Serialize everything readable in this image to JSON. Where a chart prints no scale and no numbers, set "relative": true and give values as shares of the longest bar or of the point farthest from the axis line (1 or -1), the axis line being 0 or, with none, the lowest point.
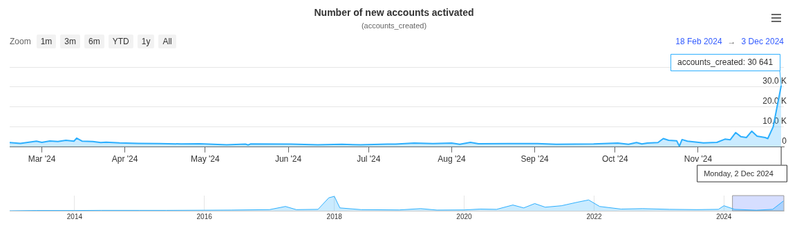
{
  "chart_data": [
    {
      "type": "area",
      "title": "Number of new accounts activated",
      "subtitle": "(accounts_created)",
      "x": [
        "2024-02-18",
        "2024-02-22",
        "2024-02-28",
        "2024-03-01",
        "2024-03-04",
        "2024-03-07",
        "2024-03-10",
        "2024-03-13",
        "2024-03-14",
        "2024-03-16",
        "2024-03-20",
        "2024-03-23",
        "2024-03-25",
        "2024-03-30",
        "2024-04-06",
        "2024-04-14",
        "2024-04-22",
        "2024-04-29",
        "2024-05-09",
        "2024-05-16",
        "2024-05-17",
        "2024-05-18",
        "2024-06-02",
        "2024-06-12",
        "2024-06-21",
        "2024-06-28",
        "2024-07-08",
        "2024-07-11",
        "2024-07-18",
        "2024-07-25",
        "2024-08-01",
        "2024-08-04",
        "2024-08-08",
        "2024-08-11",
        "2024-08-22",
        "2024-09-02",
        "2024-09-09",
        "2024-09-23",
        "2024-10-02",
        "2024-10-06",
        "2024-10-09",
        "2024-10-11",
        "2024-10-13",
        "2024-10-17",
        "2024-10-19",
        "2024-10-21",
        "2024-10-24",
        "2024-10-25",
        "2024-10-26",
        "2024-10-28",
        "2024-11-03",
        "2024-11-08",
        "2024-11-11",
        "2024-11-13",
        "2024-11-15",
        "2024-11-17",
        "2024-11-19",
        "2024-11-21",
        "2024-11-23",
        "2024-11-26",
        "2024-11-27",
        "2024-11-29",
        "2024-12-02"
      ],
      "series": [
        {
          "color": "#2caffe",
          "values": [
            2200,
            1800,
            2900,
            2300,
            3000,
            2700,
            3300,
            2900,
            4400,
            2900,
            2700,
            2200,
            2400,
            2000,
            1800,
            1700,
            1500,
            1600,
            1100,
            1400,
            1000,
            1500,
            1400,
            1100,
            1300,
            1100,
            1400,
            1400,
            1900,
            1700,
            1900,
            1300,
            2300,
            1600,
            1700,
            1700,
            1300,
            1500,
            1900,
            1300,
            2200,
            1500,
            1900,
            2200,
            4200,
            3300,
            3100,
            400,
            3700,
            2900,
            2000,
            2300,
            3900,
            3600,
            7200,
            5100,
            4700,
            7900,
            5400,
            4700,
            4200,
            10000,
            30641
          ]
        }
      ],
      "xlim": [
        "2024-02-18",
        "2024-12-03"
      ],
      "xticks": [
        {
          "value": "2024-03",
          "label": "Mar '24"
        },
        {
          "value": "2024-04",
          "label": "Apr '24"
        },
        {
          "value": "2024-05",
          "label": "May '24"
        },
        {
          "value": "2024-06",
          "label": "Jun '24"
        },
        {
          "value": "2024-07",
          "label": "Jul '24"
        },
        {
          "value": "2024-08",
          "label": "Aug '24"
        },
        {
          "value": "2024-09",
          "label": "Sep '24"
        },
        {
          "value": "2024-10",
          "label": "Oct '24"
        },
        {
          "value": "2024-11",
          "label": "Nov '24"
        }
      ],
      "ylim": [
        0,
        40000
      ],
      "yticks": [
        0,
        {
          "value": 10000,
          "label": "10.0 K"
        },
        {
          "value": 20000,
          "label": "20.0 K"
        },
        {
          "value": 30000,
          "label": "30.0 K"
        },
        {
          "value": 40000,
          "label": null
        }
      ],
      "grid": "y",
      "legend": false,
      "marker": "none",
      "annotations": [
        "Zoom",
        "1m",
        "3m",
        "6m",
        "YTD",
        "1y",
        "All",
        "18 Feb 2024",
        "→",
        "3 Dec 2024",
        {
          "text": "accounts_created: 30 641",
          "x": "2024-12-02",
          "y": 30641
        },
        {
          "text": "Monday, 2 Dec 2024",
          "x": "2024-12-02",
          "y": 0
        }
      ]
    },
    {
      "type": "area",
      "relative": true,
      "x": [
        "2013-01",
        "2013-06",
        "2014-01",
        "2014-06",
        "2015-01",
        "2015-06",
        "2016-01",
        "2016-06",
        "2017-01",
        "2017-04",
        "2017-06",
        "2017-10",
        "2017-12",
        "2018-01",
        "2018-02",
        "2018-06",
        "2019-01",
        "2019-05",
        "2019-08",
        "2020-01",
        "2020-04",
        "2020-07",
        "2020-10",
        "2020-12",
        "2021-02",
        "2021-04",
        "2021-07",
        "2021-10",
        "2021-12",
        "2022-02",
        "2022-06",
        "2022-10",
        "2023-03",
        "2023-08",
        "2023-12",
        "2024-01",
        "2024-03",
        "2024-07",
        "2024-10",
        "2024-12"
      ],
      "series": [
        {
          "color": "#2caffe",
          "values": [
            0,
            0.02,
            0.02,
            0.03,
            0.03,
            0.03,
            0.04,
            0.05,
            0.08,
            0.3,
            0.08,
            0.1,
            0.9,
            1,
            0.2,
            0.08,
            0.06,
            0.15,
            0.05,
            0.06,
            0.12,
            0.1,
            0.4,
            0.2,
            0.5,
            0.25,
            0.35,
            0.6,
            0.75,
            0.3,
            0.12,
            0.15,
            0.1,
            0.08,
            0.1,
            0.35,
            0.1,
            0.04,
            0.1,
            0.68
          ]
        }
      ],
      "xlim": [
        "2013-01",
        "2024-12-03"
      ],
      "xticks": [
        "2014",
        "2016",
        "2018",
        "2020",
        "2022",
        "2024"
      ],
      "tick_labels": "x",
      "grid": "x",
      "legend": false,
      "marker": "none",
      "bands": [
        {
          "axis": "x",
          "from": "2024-02-18",
          "to": "2024-12-03",
          "color": "#ccd6ff"
        }
      ]
    }
  ]
}
